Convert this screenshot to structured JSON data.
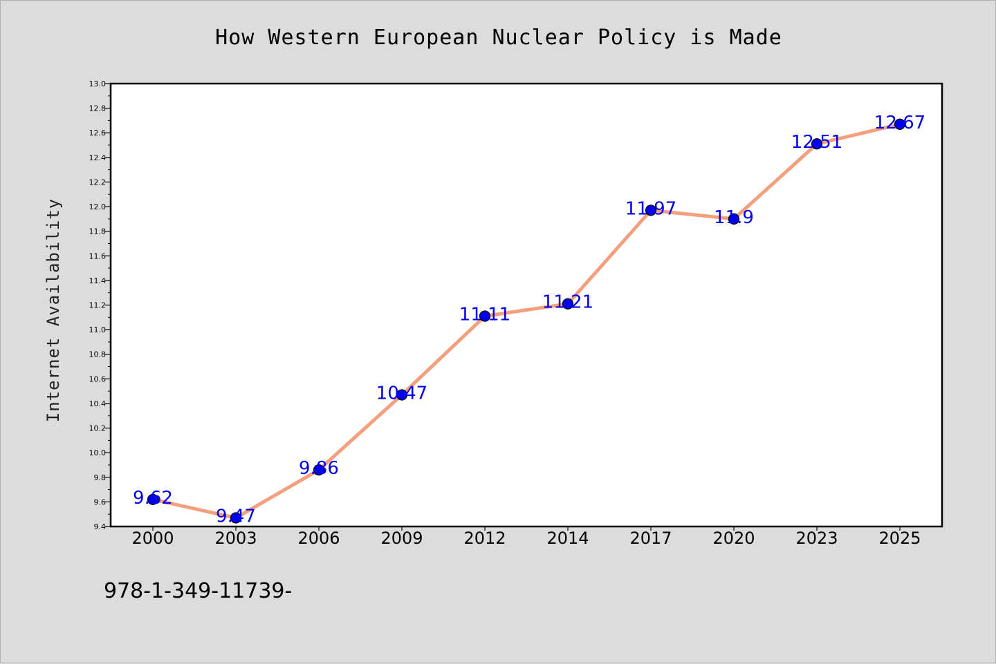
{
  "chart_data": {
    "type": "line",
    "title": "How Western European Nuclear Policy is Made",
    "xlabel": "",
    "ylabel": "Internet Availability",
    "categories": [
      "2000",
      "2003",
      "2006",
      "2009",
      "2012",
      "2014",
      "2017",
      "2020",
      "2023",
      "2025"
    ],
    "series": [
      {
        "values": [
          9.62,
          9.47,
          9.86,
          10.47,
          11.11,
          11.21,
          11.97,
          11.9,
          12.51,
          12.67
        ],
        "data_labels": [
          "9.62",
          "9.47",
          "9.86",
          "10.47",
          "11.11",
          "11.21",
          "11.97",
          "11.9",
          "12.51",
          "12.67"
        ],
        "line_color": "#f4a07e",
        "marker_color": "#0000ee"
      }
    ],
    "ylim": [
      9.4,
      13.0
    ],
    "yticks": [
      "9.4",
      "9.6",
      "9.8",
      "10.0",
      "10.2",
      "10.4",
      "10.6",
      "10.8",
      "11.0",
      "11.2",
      "11.4",
      "11.6",
      "11.8",
      "12.0",
      "12.2",
      "12.4",
      "12.6",
      "12.8",
      "13.0"
    ],
    "grid": false,
    "legend": "none"
  },
  "footer": {
    "text": "978-1-349-11739-"
  },
  "colors": {
    "background": "#dcdcdc",
    "plot_background": "#ffffff",
    "axis": "#000000"
  }
}
